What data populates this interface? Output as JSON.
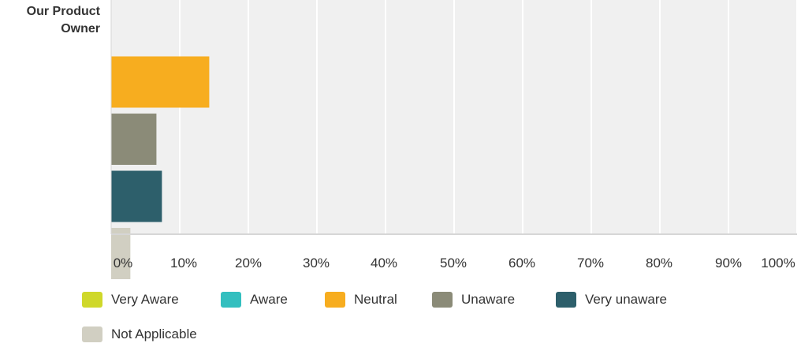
{
  "chart_data": {
    "type": "bar",
    "orientation": "horizontal",
    "categories": [
      "Our Product Owner"
    ],
    "series": [
      {
        "name": "Very Aware",
        "values": [
          0
        ],
        "color": "#cfd82a"
      },
      {
        "name": "Aware",
        "values": [
          0
        ],
        "color": "#33bfbf"
      },
      {
        "name": "Neutral",
        "values": [
          14.3
        ],
        "color": "#f7ad1f"
      },
      {
        "name": "Unaware",
        "values": [
          6.6
        ],
        "color": "#8b8b78"
      },
      {
        "name": "Very unaware",
        "values": [
          7.4
        ],
        "color": "#2d5f6b"
      },
      {
        "name": "Not Applicable",
        "values": [
          2.8
        ],
        "color": "#d1cfc2"
      }
    ],
    "x_ticks": [
      "0%",
      "10%",
      "20%",
      "30%",
      "40%",
      "50%",
      "60%",
      "70%",
      "80%",
      "90%",
      "100%"
    ],
    "xlim": [
      0,
      100
    ],
    "grid": true,
    "legend_position": "bottom",
    "background_color": "#f0f0f0",
    "grid_color": "#ffffff"
  }
}
